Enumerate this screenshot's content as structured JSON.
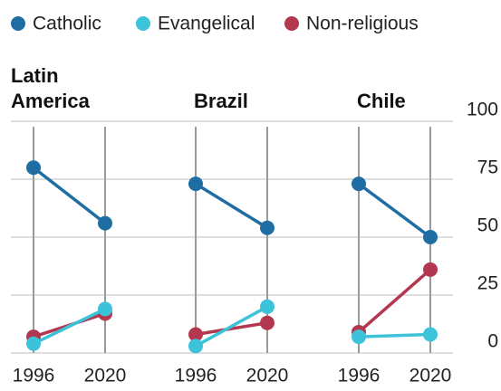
{
  "chart_data": {
    "type": "line",
    "series": [
      {
        "name": "Catholic",
        "color": "#1f6ea3"
      },
      {
        "name": "Evangelical",
        "color": "#3cc3da"
      },
      {
        "name": "Non-religious",
        "color": "#b3384f"
      }
    ],
    "panels": [
      {
        "title": "Latin America",
        "categories": [
          "1996",
          "2020"
        ],
        "values": [
          [
            80,
            56
          ],
          [
            4,
            19
          ],
          [
            7,
            17
          ]
        ]
      },
      {
        "title": "Brazil",
        "categories": [
          "1996",
          "2020"
        ],
        "values": [
          [
            73,
            54
          ],
          [
            3,
            20
          ],
          [
            8,
            13
          ]
        ]
      },
      {
        "title": "Chile",
        "categories": [
          "1996",
          "2020"
        ],
        "values": [
          [
            73,
            50
          ],
          [
            7,
            8
          ],
          [
            9,
            36
          ]
        ]
      }
    ],
    "ylim": [
      0,
      100
    ],
    "yticks": [
      0,
      25,
      50,
      75,
      100
    ],
    "grid": true
  }
}
